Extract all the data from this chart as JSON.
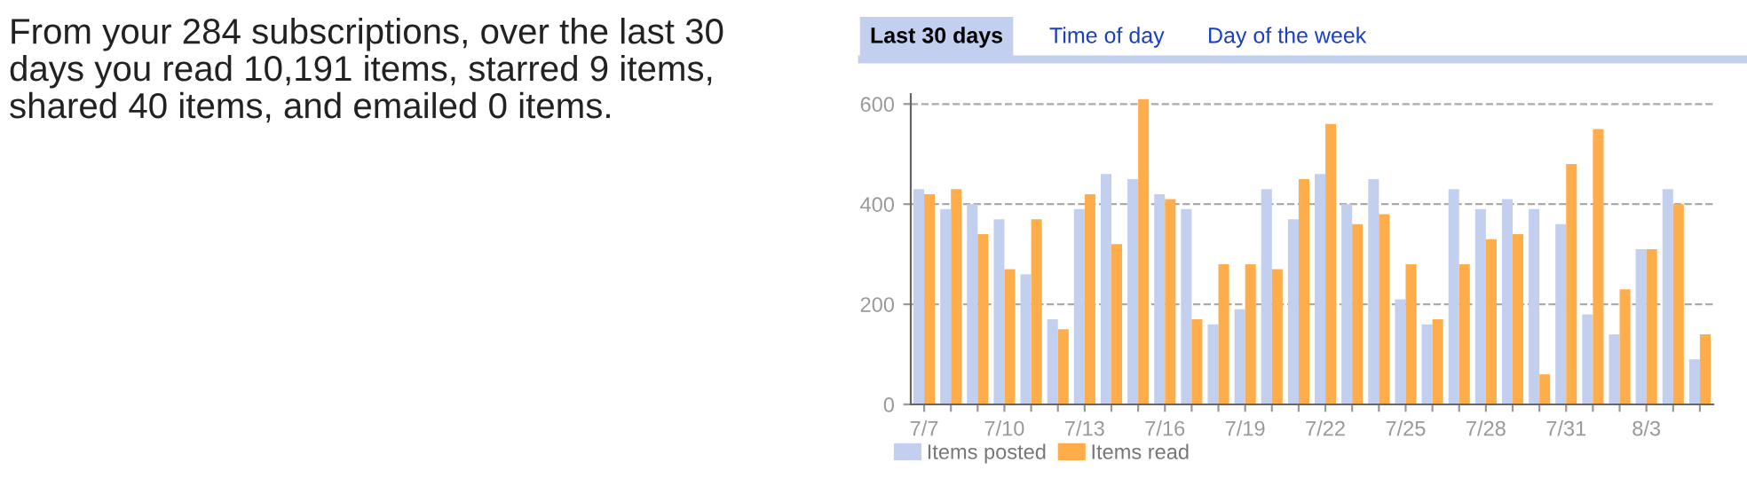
{
  "chart_data": {
    "type": "bar",
    "categories": [
      "7/7",
      null,
      null,
      "7/10",
      null,
      null,
      "7/13",
      null,
      null,
      "7/16",
      null,
      null,
      "7/19",
      null,
      null,
      "7/22",
      null,
      null,
      "7/25",
      null,
      null,
      "7/28",
      null,
      null,
      "7/31",
      null,
      null,
      "8/3",
      null,
      null
    ],
    "series": [
      {
        "name": "Items posted",
        "color": "#c3cfee",
        "values": [
          430,
          390,
          400,
          370,
          260,
          170,
          390,
          460,
          450,
          420,
          390,
          160,
          190,
          430,
          370,
          460,
          400,
          450,
          210,
          160,
          430,
          390,
          410,
          390,
          360,
          180,
          140,
          310,
          430,
          90
        ]
      },
      {
        "name": "Items read",
        "color": "#ffad4a",
        "values": [
          420,
          430,
          340,
          270,
          370,
          150,
          420,
          320,
          610,
          410,
          170,
          280,
          280,
          270,
          450,
          560,
          360,
          380,
          280,
          170,
          280,
          330,
          340,
          60,
          480,
          550,
          230,
          310,
          400,
          140
        ]
      }
    ],
    "ylim": [
      0,
      620
    ],
    "yticks": [
      0,
      200,
      400,
      600
    ],
    "grid": "y",
    "legend": "bottom",
    "annotations": [
      "From your 284 subscriptions, over the last 30 days you read 10,191 items, starred 9 items, shared 40 items, and emailed 0 items.",
      "Last 30 days",
      "Time of day",
      "Day of the week"
    ]
  }
}
